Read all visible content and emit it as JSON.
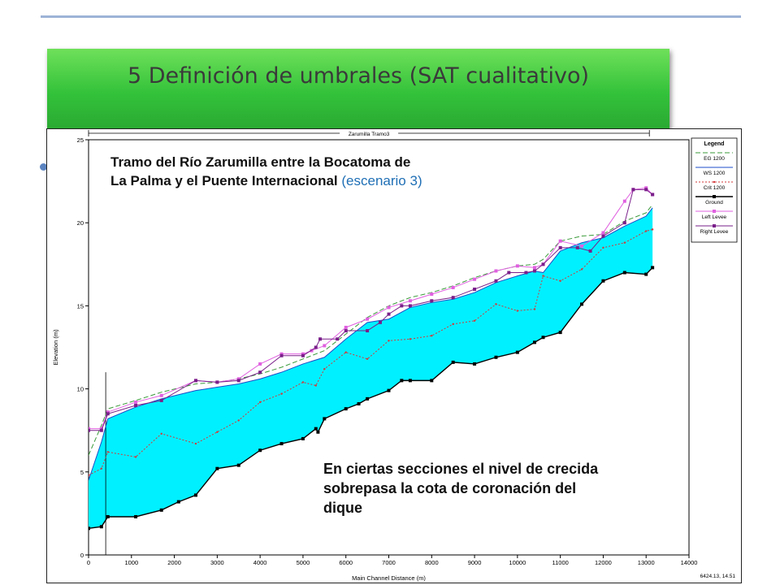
{
  "slide": {
    "title": "5 Definición de umbrales (SAT cualitativo)"
  },
  "annotations": {
    "reach_line1": "Tramo del Río Zarumilla entre la Bocatoma de",
    "reach_line2_a": "La Palma y el Puente Internacional",
    "reach_line2_b": "(escenario 3)",
    "note_line1": "En ciertas secciones el nivel de crecida",
    "note_line2": "sobrepasa la cota de coronación del",
    "note_line3": "dique"
  },
  "colors": {
    "title_bar": "#3cc83c",
    "water_fill": "#00f0ff",
    "eg": "#3a9a3a",
    "ws": "#1b4dc8",
    "crit": "#d33a3a",
    "ground": "#000000",
    "left_levee": "#e060e0",
    "right_levee": "#7a1f8a"
  },
  "chart_data": {
    "type": "line",
    "title": "",
    "xlabel": "Main Channel Distance (m)",
    "ylabel": "Elevation (m)",
    "xlim": [
      0,
      14000
    ],
    "ylim": [
      0,
      25
    ],
    "x_ticks": [
      0,
      1000,
      2000,
      3000,
      4000,
      5000,
      6000,
      7000,
      8000,
      9000,
      10000,
      11000,
      12000,
      13000,
      14000
    ],
    "y_ticks": [
      0,
      5,
      10,
      15,
      20,
      25
    ],
    "reach_label": "Zarumilla Tramo3",
    "reach_range": [
      0,
      13000
    ],
    "footer": "6424.13, 14.51",
    "grid": false,
    "legend_title": "Legend",
    "legend_position": "top-right",
    "series": [
      {
        "name": "EG 1200",
        "x": [
          0,
          300,
          450,
          1100,
          1700,
          2500,
          3000,
          3500,
          4000,
          4500,
          5000,
          5500,
          6000,
          6500,
          7000,
          7500,
          8000,
          8500,
          9000,
          9500,
          10000,
          10400,
          10600,
          11000,
          11500,
          12000,
          12500,
          13000,
          13150
        ],
        "y": [
          6.0,
          7.8,
          8.8,
          9.3,
          9.8,
          10.3,
          10.4,
          10.6,
          10.9,
          11.3,
          11.8,
          12.3,
          13.3,
          14.3,
          15.0,
          15.5,
          15.8,
          16.2,
          16.7,
          17.1,
          17.4,
          17.5,
          17.8,
          18.9,
          19.2,
          19.3,
          20.1,
          20.6,
          21.1
        ]
      },
      {
        "name": "WS 1200",
        "x": [
          0,
          300,
          450,
          1100,
          1700,
          2500,
          3000,
          3500,
          4000,
          4500,
          5000,
          5500,
          6000,
          6500,
          7000,
          7500,
          8000,
          8500,
          9000,
          9500,
          10000,
          10400,
          10600,
          11000,
          11500,
          12000,
          12500,
          13000,
          13150
        ],
        "y": [
          4.5,
          6.8,
          8.2,
          8.9,
          9.4,
          9.9,
          10.1,
          10.3,
          10.6,
          11.0,
          11.5,
          11.9,
          13.0,
          14.0,
          14.2,
          14.9,
          15.2,
          15.4,
          15.8,
          16.4,
          16.8,
          17.1,
          17.0,
          18.3,
          18.8,
          19.1,
          19.8,
          20.4,
          20.9
        ]
      },
      {
        "name": "Crit 1200",
        "x": [
          0,
          300,
          450,
          1100,
          1700,
          2500,
          3000,
          3500,
          4000,
          4500,
          5000,
          5300,
          5500,
          6000,
          6500,
          7000,
          7500,
          8000,
          8500,
          9000,
          9500,
          10000,
          10400,
          10600,
          11000,
          11500,
          12000,
          12500,
          13000,
          13150
        ],
        "y": [
          4.8,
          5.2,
          6.2,
          5.9,
          7.3,
          6.7,
          7.4,
          8.1,
          9.2,
          9.7,
          10.4,
          10.2,
          11.2,
          12.2,
          11.8,
          12.9,
          13.0,
          13.2,
          13.9,
          14.1,
          15.1,
          14.7,
          14.8,
          16.8,
          16.5,
          17.2,
          18.5,
          18.8,
          19.5,
          19.6
        ]
      },
      {
        "name": "Ground",
        "x": [
          0,
          300,
          450,
          1100,
          1700,
          2100,
          2500,
          3000,
          3500,
          4000,
          4500,
          5000,
          5300,
          5350,
          5500,
          6000,
          6300,
          6500,
          7000,
          7300,
          7500,
          8000,
          8500,
          9000,
          9500,
          10000,
          10400,
          10600,
          11000,
          11500,
          12000,
          12500,
          13000,
          13150
        ],
        "y": [
          1.6,
          1.7,
          2.3,
          2.3,
          2.7,
          3.2,
          3.6,
          5.2,
          5.4,
          6.3,
          6.7,
          7.0,
          7.6,
          7.4,
          8.2,
          8.8,
          9.1,
          9.4,
          9.9,
          10.5,
          10.5,
          10.5,
          11.6,
          11.5,
          11.9,
          12.2,
          12.8,
          13.1,
          13.4,
          15.1,
          16.5,
          17.0,
          16.9,
          17.3
        ]
      },
      {
        "name": "Left Levee",
        "x": [
          0,
          300,
          450,
          1100,
          1700,
          2500,
          3000,
          3500,
          4000,
          4500,
          5000,
          5200,
          5500,
          6000,
          6500,
          7000,
          7500,
          8000,
          8500,
          9000,
          9500,
          10000,
          10400,
          10600,
          11000,
          11500,
          12000,
          12500,
          12700,
          13000,
          13150
        ],
        "y": [
          7.6,
          7.6,
          8.6,
          9.2,
          9.6,
          10.5,
          10.4,
          10.6,
          11.5,
          12.1,
          12.1,
          12.3,
          12.6,
          13.7,
          14.2,
          14.9,
          15.3,
          15.7,
          16.1,
          16.6,
          17.1,
          17.4,
          17.3,
          17.5,
          18.9,
          18.6,
          19.4,
          21.3,
          22.0,
          22.1,
          21.7
        ]
      },
      {
        "name": "Right Levee",
        "x": [
          0,
          300,
          450,
          1100,
          1700,
          2500,
          3000,
          3500,
          4000,
          4500,
          5000,
          5300,
          5400,
          5800,
          6000,
          6500,
          6800,
          7000,
          7300,
          7500,
          8000,
          8500,
          9000,
          9500,
          9800,
          10200,
          10400,
          10600,
          11000,
          11400,
          11700,
          12000,
          12500,
          12700,
          13000,
          13150
        ],
        "y": [
          7.5,
          7.5,
          8.5,
          9.0,
          9.3,
          10.5,
          10.4,
          10.5,
          11.0,
          12.0,
          12.0,
          12.5,
          13.0,
          13.0,
          13.5,
          13.5,
          14.0,
          14.5,
          15.0,
          15.0,
          15.3,
          15.5,
          16.0,
          16.5,
          17.0,
          17.0,
          17.1,
          17.5,
          18.5,
          18.5,
          18.3,
          19.2,
          20.0,
          22.0,
          22.0,
          21.7
        ]
      }
    ]
  }
}
